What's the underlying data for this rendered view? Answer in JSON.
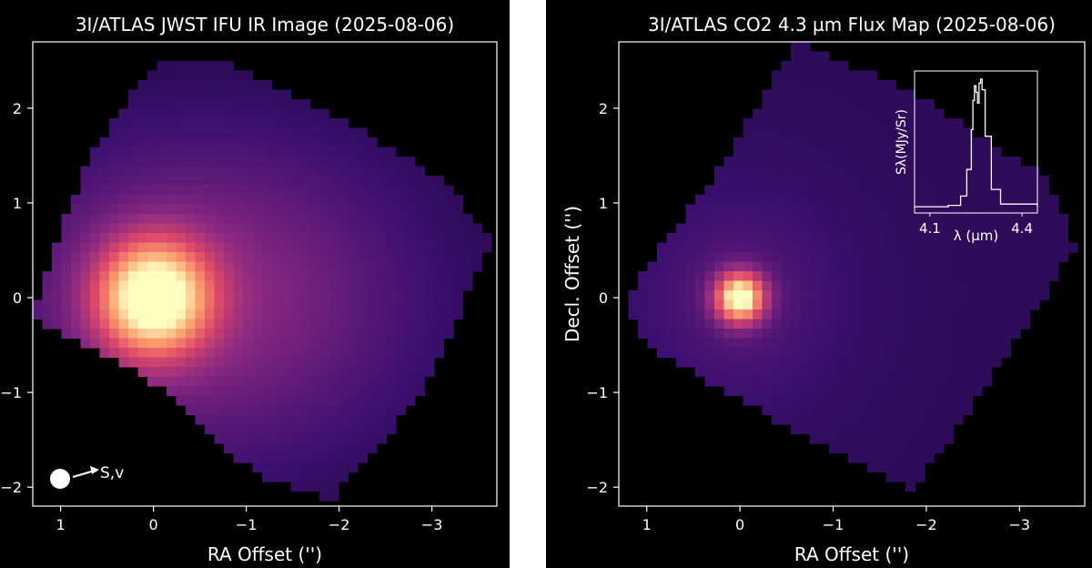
{
  "chart_data": [
    {
      "type": "heatmap",
      "title": "3I/ATLAS JWST IFU IR Image (2025-08-06)",
      "xlabel": "RA Offset ('')",
      "ylabel": "",
      "x_ticks": [
        "1",
        "0",
        "−1",
        "−2",
        "−3"
      ],
      "y_ticks": [
        "2",
        "1",
        "0",
        "−1",
        "−2"
      ],
      "xlim": [
        1.3,
        -3.7
      ],
      "ylim": [
        -2.2,
        2.7
      ],
      "peak": {
        "x": 0.0,
        "y": 0.0
      },
      "colormap": [
        "#000004",
        "#3b0f70",
        "#8c2981",
        "#de4968",
        "#fe9f6d",
        "#fcfdbf"
      ],
      "annotation": "S,v"
    },
    {
      "type": "heatmap",
      "title": "3I/ATLAS CO2 4.3 µm Flux Map (2025-08-06)",
      "xlabel": "RA Offset ('')",
      "ylabel": "Decl. Offset ('')",
      "x_ticks": [
        "1",
        "0",
        "−1",
        "−2",
        "−3"
      ],
      "y_ticks": [
        "2",
        "1",
        "0",
        "−1",
        "−2"
      ],
      "xlim": [
        1.3,
        -3.7
      ],
      "ylim": [
        -2.2,
        2.7
      ],
      "peak": {
        "x": 0.0,
        "y": 0.0
      },
      "inset": {
        "type": "line",
        "xlabel": "λ (µm)",
        "ylabel": "Sλ(MJy/Sr)",
        "x_ticks": [
          "4.1",
          "4.4"
        ],
        "xlim": [
          4.05,
          4.45
        ],
        "x": [
          4.05,
          4.16,
          4.2,
          4.22,
          4.235,
          4.24,
          4.245,
          4.25,
          4.255,
          4.26,
          4.265,
          4.27,
          4.28,
          4.3,
          4.33,
          4.45
        ],
        "y": [
          0.02,
          0.03,
          0.1,
          0.3,
          0.6,
          0.82,
          0.93,
          0.88,
          0.8,
          0.95,
          0.98,
          0.9,
          0.55,
          0.15,
          0.04,
          0.02
        ]
      }
    }
  ]
}
